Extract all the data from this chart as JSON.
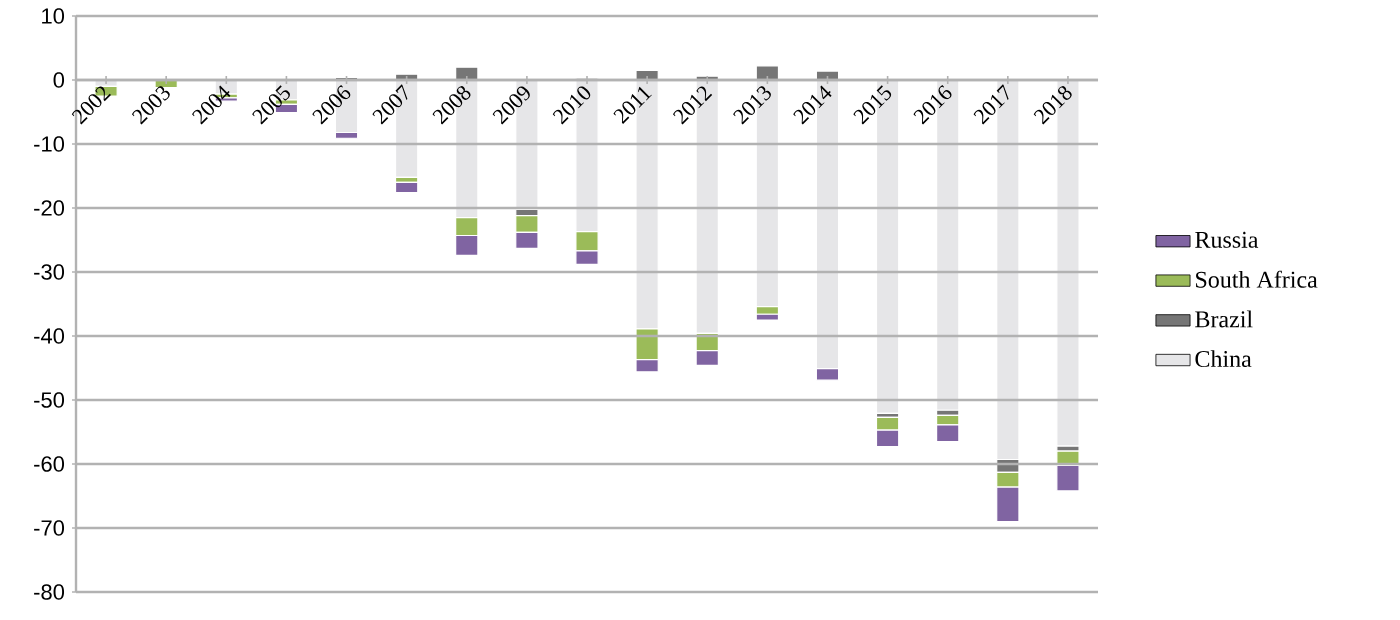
{
  "chart_data": {
    "type": "bar",
    "stacked": true,
    "categories": [
      "2002",
      "2003",
      "2004",
      "2005",
      "2006",
      "2007",
      "2008",
      "2009",
      "2010",
      "2011",
      "2012",
      "2013",
      "2014",
      "2015",
      "2016",
      "2017",
      "2018"
    ],
    "series": [
      {
        "name": "China",
        "color": "#e6e6e8",
        "values": [
          -1.0,
          null,
          -2.2,
          -3.1,
          -8.2,
          -15.2,
          -21.5,
          -20.2,
          -23.7,
          -38.9,
          -39.6,
          -35.4,
          -45.1,
          -52.1,
          -51.6,
          -59.3,
          -57.2
        ]
      },
      {
        "name": "Brazil",
        "color": "#767676",
        "values": [
          null,
          null,
          null,
          null,
          0.4,
          0.9,
          2.0,
          -1.0,
          0.3,
          1.5,
          0.6,
          2.2,
          1.4,
          -0.6,
          -0.8,
          -2.0,
          -0.8
        ]
      },
      {
        "name": "South Africa",
        "color": "#9bbb59",
        "values": [
          -1.5,
          -1.2,
          -0.6,
          -0.7,
          null,
          -0.8,
          -2.8,
          -2.6,
          -3.0,
          -4.8,
          -2.7,
          -1.2,
          null,
          -2.0,
          -1.5,
          -2.3,
          -2.2
        ]
      },
      {
        "name": "Russia",
        "color": "#8064a2",
        "values": [
          null,
          null,
          -0.5,
          -1.3,
          -0.9,
          -1.6,
          -3.1,
          -2.5,
          -2.1,
          -1.9,
          -2.3,
          -0.9,
          -1.8,
          -2.6,
          -2.6,
          -5.4,
          -4.0
        ]
      }
    ],
    "ylim": [
      -80,
      10
    ],
    "yticks": [
      -80,
      -70,
      -60,
      -50,
      -40,
      -30,
      -20,
      -10,
      0,
      10
    ],
    "grid": "y",
    "legend": "right"
  }
}
